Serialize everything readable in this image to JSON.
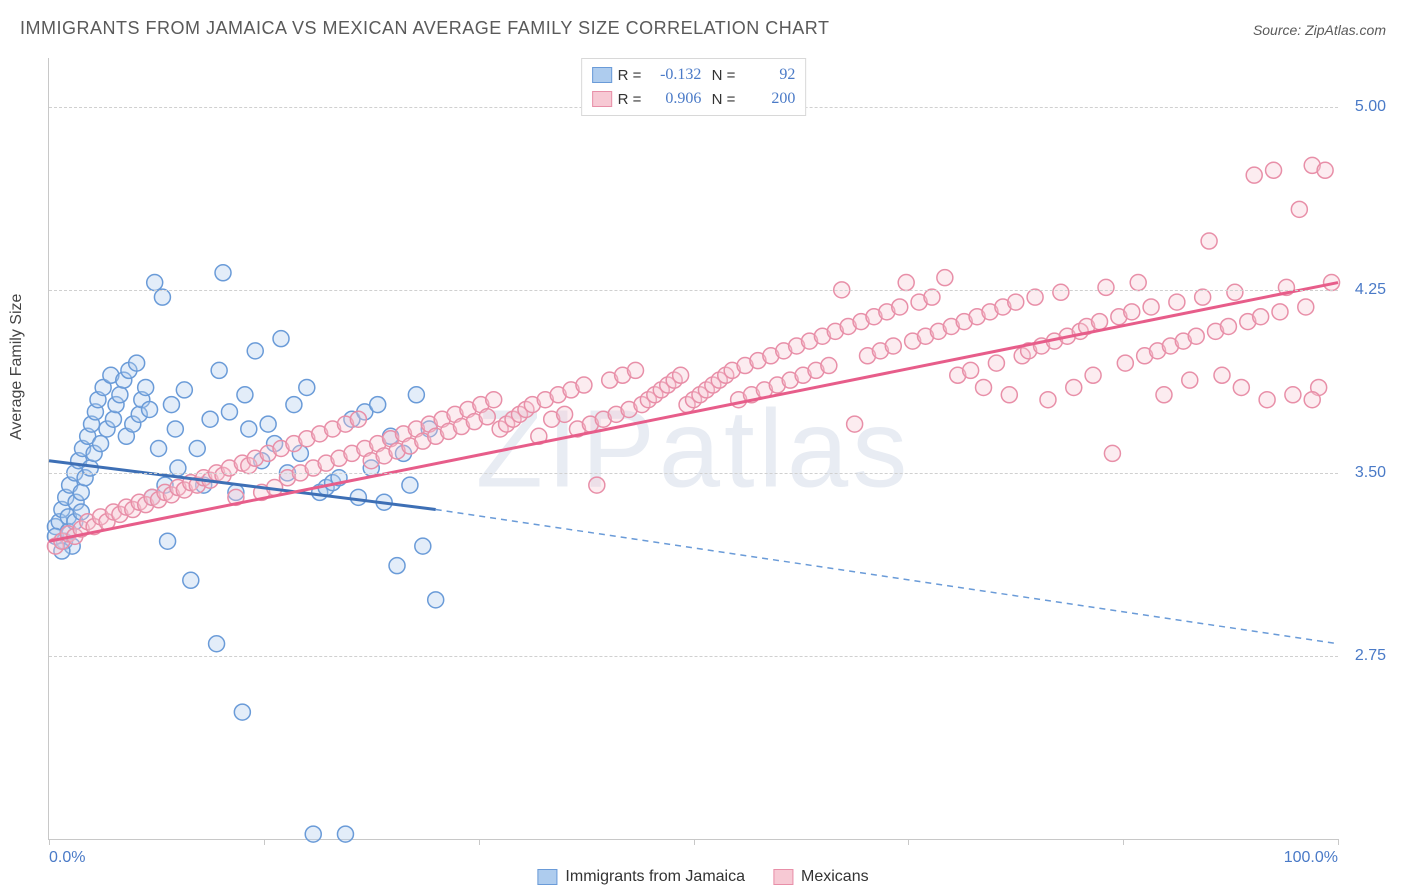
{
  "title": "IMMIGRANTS FROM JAMAICA VS MEXICAN AVERAGE FAMILY SIZE CORRELATION CHART",
  "source": "Source: ZipAtlas.com",
  "y_label": "Average Family Size",
  "watermark": "ZIPatlas",
  "chart": {
    "type": "scatter",
    "xlim": [
      0,
      100
    ],
    "ylim": [
      2.0,
      5.2
    ],
    "x_ticks_major": [
      0,
      100
    ],
    "x_ticks_minor": [
      16.67,
      33.33,
      50,
      66.67,
      83.33
    ],
    "x_tick_labels": {
      "0": "0.0%",
      "100": "100.0%"
    },
    "y_gridlines": [
      2.75,
      3.5,
      4.25,
      5.0
    ],
    "y_tick_labels": {
      "2.75": "2.75",
      "3.50": "3.50",
      "4.25": "4.25",
      "5.00": "5.00"
    },
    "background_color": "#ffffff",
    "grid_color": "#d0d0d0",
    "axis_color": "#c8c8c8",
    "series": [
      {
        "name": "Immigrants from Jamaica",
        "color_fill": "#aeccee",
        "color_stroke": "#6a9bd8",
        "marker_radius": 8,
        "R": "-0.132",
        "N": "92",
        "trend": {
          "x1": 0,
          "y1": 3.55,
          "x2_solid": 30,
          "y2_solid": 3.35,
          "x2": 100,
          "y2": 2.8,
          "solid_color": "#3d6fb5",
          "dash_color": "#6a9bd8"
        },
        "points": [
          [
            0.5,
            3.28
          ],
          [
            0.8,
            3.3
          ],
          [
            1.0,
            3.35
          ],
          [
            1.2,
            3.22
          ],
          [
            1.3,
            3.4
          ],
          [
            1.5,
            3.32
          ],
          [
            1.6,
            3.45
          ],
          [
            1.8,
            3.2
          ],
          [
            2.0,
            3.5
          ],
          [
            2.1,
            3.38
          ],
          [
            2.3,
            3.55
          ],
          [
            2.5,
            3.42
          ],
          [
            2.6,
            3.6
          ],
          [
            2.8,
            3.48
          ],
          [
            3.0,
            3.65
          ],
          [
            3.2,
            3.52
          ],
          [
            3.3,
            3.7
          ],
          [
            3.5,
            3.58
          ],
          [
            3.6,
            3.75
          ],
          [
            3.8,
            3.8
          ],
          [
            4.0,
            3.62
          ],
          [
            4.2,
            3.85
          ],
          [
            4.5,
            3.68
          ],
          [
            4.8,
            3.9
          ],
          [
            5.0,
            3.72
          ],
          [
            5.2,
            3.78
          ],
          [
            5.5,
            3.82
          ],
          [
            5.8,
            3.88
          ],
          [
            6.0,
            3.65
          ],
          [
            6.2,
            3.92
          ],
          [
            6.5,
            3.7
          ],
          [
            6.8,
            3.95
          ],
          [
            7.0,
            3.74
          ],
          [
            7.2,
            3.8
          ],
          [
            7.5,
            3.85
          ],
          [
            7.8,
            3.76
          ],
          [
            8.0,
            3.4
          ],
          [
            8.2,
            4.28
          ],
          [
            8.5,
            3.6
          ],
          [
            8.8,
            4.22
          ],
          [
            9.0,
            3.45
          ],
          [
            9.2,
            3.22
          ],
          [
            9.5,
            3.78
          ],
          [
            9.8,
            3.68
          ],
          [
            10.0,
            3.52
          ],
          [
            10.5,
            3.84
          ],
          [
            11.0,
            3.06
          ],
          [
            11.5,
            3.6
          ],
          [
            12.0,
            3.45
          ],
          [
            12.5,
            3.72
          ],
          [
            13.0,
            2.8
          ],
          [
            13.2,
            3.92
          ],
          [
            13.5,
            4.32
          ],
          [
            14.0,
            3.75
          ],
          [
            14.5,
            3.42
          ],
          [
            15.0,
            2.52
          ],
          [
            15.2,
            3.82
          ],
          [
            15.5,
            3.68
          ],
          [
            16.0,
            4.0
          ],
          [
            16.5,
            3.55
          ],
          [
            17.0,
            3.7
          ],
          [
            17.5,
            3.62
          ],
          [
            18.0,
            4.05
          ],
          [
            18.5,
            3.5
          ],
          [
            19.0,
            3.78
          ],
          [
            19.5,
            3.58
          ],
          [
            20.0,
            3.85
          ],
          [
            20.5,
            2.02
          ],
          [
            21.0,
            3.42
          ],
          [
            21.5,
            3.44
          ],
          [
            22.0,
            3.46
          ],
          [
            22.5,
            3.48
          ],
          [
            23.0,
            2.02
          ],
          [
            23.5,
            3.72
          ],
          [
            24.0,
            3.4
          ],
          [
            24.5,
            3.75
          ],
          [
            25.0,
            3.52
          ],
          [
            25.5,
            3.78
          ],
          [
            26.0,
            3.38
          ],
          [
            26.5,
            3.65
          ],
          [
            27.0,
            3.12
          ],
          [
            27.5,
            3.58
          ],
          [
            28.0,
            3.45
          ],
          [
            28.5,
            3.82
          ],
          [
            29.0,
            3.2
          ],
          [
            29.5,
            3.68
          ],
          [
            30.0,
            2.98
          ],
          [
            0.5,
            3.24
          ],
          [
            1.0,
            3.18
          ],
          [
            1.5,
            3.26
          ],
          [
            2.0,
            3.3
          ],
          [
            2.5,
            3.34
          ]
        ]
      },
      {
        "name": "Mexicans",
        "color_fill": "#f7c9d4",
        "color_stroke": "#e88fa8",
        "marker_radius": 8,
        "R": "0.906",
        "N": "200",
        "trend": {
          "x1": 0,
          "y1": 3.22,
          "x2_solid": 100,
          "y2_solid": 4.28,
          "x2": 100,
          "y2": 4.28,
          "solid_color": "#e75d8a",
          "dash_color": "#e88fa8"
        },
        "points": [
          [
            0.5,
            3.2
          ],
          [
            1.0,
            3.22
          ],
          [
            1.5,
            3.25
          ],
          [
            2.0,
            3.24
          ],
          [
            2.5,
            3.27
          ],
          [
            3.0,
            3.3
          ],
          [
            3.5,
            3.28
          ],
          [
            4.0,
            3.32
          ],
          [
            4.5,
            3.3
          ],
          [
            5.0,
            3.34
          ],
          [
            5.5,
            3.33
          ],
          [
            6.0,
            3.36
          ],
          [
            6.5,
            3.35
          ],
          [
            7.0,
            3.38
          ],
          [
            7.5,
            3.37
          ],
          [
            8.0,
            3.4
          ],
          [
            8.5,
            3.39
          ],
          [
            9.0,
            3.42
          ],
          [
            9.5,
            3.41
          ],
          [
            10.0,
            3.44
          ],
          [
            10.5,
            3.43
          ],
          [
            11.0,
            3.46
          ],
          [
            11.5,
            3.45
          ],
          [
            12.0,
            3.48
          ],
          [
            12.5,
            3.47
          ],
          [
            13.0,
            3.5
          ],
          [
            13.5,
            3.49
          ],
          [
            14.0,
            3.52
          ],
          [
            14.5,
            3.4
          ],
          [
            15.0,
            3.54
          ],
          [
            15.5,
            3.53
          ],
          [
            16.0,
            3.56
          ],
          [
            16.5,
            3.42
          ],
          [
            17.0,
            3.58
          ],
          [
            17.5,
            3.44
          ],
          [
            18.0,
            3.6
          ],
          [
            18.5,
            3.48
          ],
          [
            19.0,
            3.62
          ],
          [
            19.5,
            3.5
          ],
          [
            20.0,
            3.64
          ],
          [
            20.5,
            3.52
          ],
          [
            21.0,
            3.66
          ],
          [
            21.5,
            3.54
          ],
          [
            22.0,
            3.68
          ],
          [
            22.5,
            3.56
          ],
          [
            23.0,
            3.7
          ],
          [
            23.5,
            3.58
          ],
          [
            24.0,
            3.72
          ],
          [
            24.5,
            3.6
          ],
          [
            25.0,
            3.55
          ],
          [
            25.5,
            3.62
          ],
          [
            26.0,
            3.57
          ],
          [
            26.5,
            3.64
          ],
          [
            27.0,
            3.59
          ],
          [
            27.5,
            3.66
          ],
          [
            28.0,
            3.61
          ],
          [
            28.5,
            3.68
          ],
          [
            29.0,
            3.63
          ],
          [
            29.5,
            3.7
          ],
          [
            30.0,
            3.65
          ],
          [
            30.5,
            3.72
          ],
          [
            31.0,
            3.67
          ],
          [
            31.5,
            3.74
          ],
          [
            32.0,
            3.69
          ],
          [
            32.5,
            3.76
          ],
          [
            33.0,
            3.71
          ],
          [
            33.5,
            3.78
          ],
          [
            34.0,
            3.73
          ],
          [
            34.5,
            3.8
          ],
          [
            35.0,
            3.68
          ],
          [
            35.5,
            3.7
          ],
          [
            36.0,
            3.72
          ],
          [
            36.5,
            3.74
          ],
          [
            37.0,
            3.76
          ],
          [
            37.5,
            3.78
          ],
          [
            38.0,
            3.65
          ],
          [
            38.5,
            3.8
          ],
          [
            39.0,
            3.72
          ],
          [
            39.5,
            3.82
          ],
          [
            40.0,
            3.74
          ],
          [
            40.5,
            3.84
          ],
          [
            41.0,
            3.68
          ],
          [
            41.5,
            3.86
          ],
          [
            42.0,
            3.7
          ],
          [
            42.5,
            3.45
          ],
          [
            43.0,
            3.72
          ],
          [
            43.5,
            3.88
          ],
          [
            44.0,
            3.74
          ],
          [
            44.5,
            3.9
          ],
          [
            45.0,
            3.76
          ],
          [
            45.5,
            3.92
          ],
          [
            46.0,
            3.78
          ],
          [
            46.5,
            3.8
          ],
          [
            47.0,
            3.82
          ],
          [
            47.5,
            3.84
          ],
          [
            48.0,
            3.86
          ],
          [
            48.5,
            3.88
          ],
          [
            49.0,
            3.9
          ],
          [
            49.5,
            3.78
          ],
          [
            50.0,
            3.8
          ],
          [
            50.5,
            3.82
          ],
          [
            51.0,
            3.84
          ],
          [
            51.5,
            3.86
          ],
          [
            52.0,
            3.88
          ],
          [
            52.5,
            3.9
          ],
          [
            53.0,
            3.92
          ],
          [
            53.5,
            3.8
          ],
          [
            54.0,
            3.94
          ],
          [
            54.5,
            3.82
          ],
          [
            55.0,
            3.96
          ],
          [
            55.5,
            3.84
          ],
          [
            56.0,
            3.98
          ],
          [
            56.5,
            3.86
          ],
          [
            57.0,
            4.0
          ],
          [
            57.5,
            3.88
          ],
          [
            58.0,
            4.02
          ],
          [
            58.5,
            3.9
          ],
          [
            59.0,
            4.04
          ],
          [
            59.5,
            3.92
          ],
          [
            60.0,
            4.06
          ],
          [
            60.5,
            3.94
          ],
          [
            61.0,
            4.08
          ],
          [
            61.5,
            4.25
          ],
          [
            62.0,
            4.1
          ],
          [
            62.5,
            3.7
          ],
          [
            63.0,
            4.12
          ],
          [
            63.5,
            3.98
          ],
          [
            64.0,
            4.14
          ],
          [
            64.5,
            4.0
          ],
          [
            65.0,
            4.16
          ],
          [
            65.5,
            4.02
          ],
          [
            66.0,
            4.18
          ],
          [
            66.5,
            4.28
          ],
          [
            67.0,
            4.04
          ],
          [
            67.5,
            4.2
          ],
          [
            68.0,
            4.06
          ],
          [
            68.5,
            4.22
          ],
          [
            69.0,
            4.08
          ],
          [
            69.5,
            4.3
          ],
          [
            70.0,
            4.1
          ],
          [
            70.5,
            3.9
          ],
          [
            71.0,
            4.12
          ],
          [
            71.5,
            3.92
          ],
          [
            72.0,
            4.14
          ],
          [
            72.5,
            3.85
          ],
          [
            73.0,
            4.16
          ],
          [
            73.5,
            3.95
          ],
          [
            74.0,
            4.18
          ],
          [
            74.5,
            3.82
          ],
          [
            75.0,
            4.2
          ],
          [
            75.5,
            3.98
          ],
          [
            76.0,
            4.0
          ],
          [
            76.5,
            4.22
          ],
          [
            77.0,
            4.02
          ],
          [
            77.5,
            3.8
          ],
          [
            78.0,
            4.04
          ],
          [
            78.5,
            4.24
          ],
          [
            79.0,
            4.06
          ],
          [
            79.5,
            3.85
          ],
          [
            80.0,
            4.08
          ],
          [
            80.5,
            4.1
          ],
          [
            81.0,
            3.9
          ],
          [
            81.5,
            4.12
          ],
          [
            82.0,
            4.26
          ],
          [
            82.5,
            3.58
          ],
          [
            83.0,
            4.14
          ],
          [
            83.5,
            3.95
          ],
          [
            84.0,
            4.16
          ],
          [
            84.5,
            4.28
          ],
          [
            85.0,
            3.98
          ],
          [
            85.5,
            4.18
          ],
          [
            86.0,
            4.0
          ],
          [
            86.5,
            3.82
          ],
          [
            87.0,
            4.02
          ],
          [
            87.5,
            4.2
          ],
          [
            88.0,
            4.04
          ],
          [
            88.5,
            3.88
          ],
          [
            89.0,
            4.06
          ],
          [
            89.5,
            4.22
          ],
          [
            90.0,
            4.45
          ],
          [
            90.5,
            4.08
          ],
          [
            91.0,
            3.9
          ],
          [
            91.5,
            4.1
          ],
          [
            92.0,
            4.24
          ],
          [
            92.5,
            3.85
          ],
          [
            93.0,
            4.12
          ],
          [
            93.5,
            4.72
          ],
          [
            94.0,
            4.14
          ],
          [
            94.5,
            3.8
          ],
          [
            95.0,
            4.74
          ],
          [
            95.5,
            4.16
          ],
          [
            96.0,
            4.26
          ],
          [
            96.5,
            3.82
          ],
          [
            97.0,
            4.58
          ],
          [
            97.5,
            4.18
          ],
          [
            98.0,
            4.76
          ],
          [
            98.5,
            3.85
          ],
          [
            99.0,
            4.74
          ],
          [
            99.5,
            4.28
          ],
          [
            98.0,
            3.8
          ]
        ]
      }
    ]
  },
  "legend_bottom": [
    {
      "label": "Immigrants from Jamaica",
      "fill": "#aeccee",
      "stroke": "#6a9bd8"
    },
    {
      "label": "Mexicans",
      "fill": "#f7c9d4",
      "stroke": "#e88fa8"
    }
  ]
}
